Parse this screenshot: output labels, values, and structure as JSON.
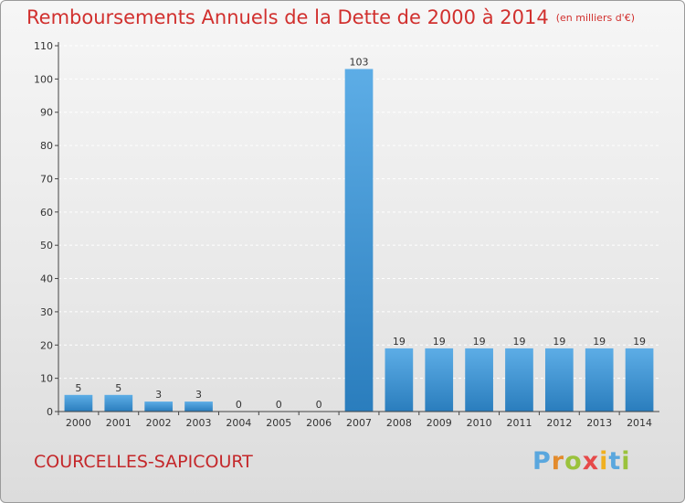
{
  "header": {
    "title": "Remboursements Annuels de la Dette de 2000 à 2014",
    "unit": "(en milliers d'€)"
  },
  "commune": "COURCELLES-SAPICOURT",
  "logo": {
    "text": "Proxiti"
  },
  "colors": {
    "bar_light": "#5dade6",
    "bar_dark": "#2a7dbd",
    "title": "#d1302e",
    "axis": "#444444",
    "grid": "#ffffff"
  },
  "chart_data": {
    "type": "bar",
    "title": "Remboursements Annuels de la Dette de 2000 à 2014",
    "xlabel": "",
    "ylabel": "",
    "categories": [
      "2000",
      "2001",
      "2002",
      "2003",
      "2004",
      "2005",
      "2006",
      "2007",
      "2008",
      "2009",
      "2010",
      "2011",
      "2012",
      "2013",
      "2014"
    ],
    "values": [
      5,
      5,
      3,
      3,
      0,
      0,
      0,
      103,
      19,
      19,
      19,
      19,
      19,
      19,
      19
    ],
    "data_labels": [
      "5",
      "5",
      "3",
      "3",
      "0",
      "0",
      "0",
      "103",
      "19",
      "19",
      "19",
      "19",
      "19",
      "19",
      "19"
    ],
    "ylim": [
      0,
      110
    ],
    "yticks": [
      0,
      10,
      20,
      30,
      40,
      50,
      60,
      70,
      80,
      90,
      100,
      110
    ],
    "grid": true
  }
}
